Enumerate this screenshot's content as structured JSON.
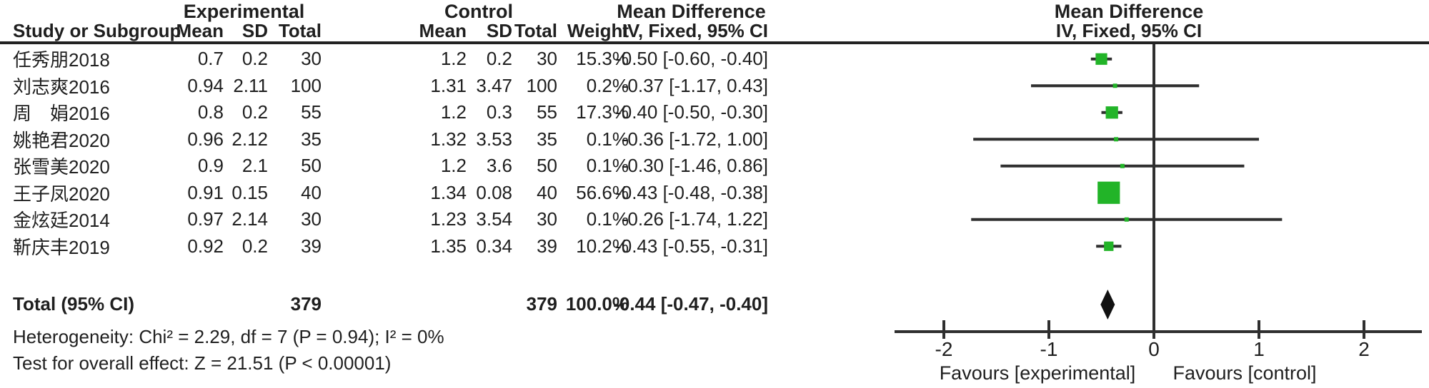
{
  "title_row": {
    "experimental": "Experimental",
    "control": "Control",
    "md_left": "Mean Difference",
    "md_right": "Mean Difference"
  },
  "columns": {
    "study": "Study or Subgroup",
    "mean": "Mean",
    "sd": "SD",
    "total": "Total",
    "mean2": "Mean",
    "sd2": "SD",
    "total2": "Total",
    "weight": "Weight",
    "ci": "IV, Fixed, 95% CI",
    "ci_right": "IV, Fixed, 95% CI"
  },
  "rows": [
    {
      "study": "任秀朋2018",
      "e_mean": "0.7",
      "e_sd": "0.2",
      "e_total": "30",
      "c_mean": "1.2",
      "c_sd": "0.2",
      "c_total": "30",
      "weight": "15.3%",
      "ci": "-0.50 [-0.60, -0.40]"
    },
    {
      "study": "刘志爽2016",
      "e_mean": "0.94",
      "e_sd": "2.11",
      "e_total": "100",
      "c_mean": "1.31",
      "c_sd": "3.47",
      "c_total": "100",
      "weight": "0.2%",
      "ci": "-0.37 [-1.17, 0.43]"
    },
    {
      "study": "周　娟2016",
      "e_mean": "0.8",
      "e_sd": "0.2",
      "e_total": "55",
      "c_mean": "1.2",
      "c_sd": "0.3",
      "c_total": "55",
      "weight": "17.3%",
      "ci": "-0.40 [-0.50, -0.30]"
    },
    {
      "study": "姚艳君2020",
      "e_mean": "0.96",
      "e_sd": "2.12",
      "e_total": "35",
      "c_mean": "1.32",
      "c_sd": "3.53",
      "c_total": "35",
      "weight": "0.1%",
      "ci": "-0.36 [-1.72, 1.00]"
    },
    {
      "study": "张雪美2020",
      "e_mean": "0.9",
      "e_sd": "2.1",
      "e_total": "50",
      "c_mean": "1.2",
      "c_sd": "3.6",
      "c_total": "50",
      "weight": "0.1%",
      "ci": "-0.30 [-1.46, 0.86]"
    },
    {
      "study": "王子凤2020",
      "e_mean": "0.91",
      "e_sd": "0.15",
      "e_total": "40",
      "c_mean": "1.34",
      "c_sd": "0.08",
      "c_total": "40",
      "weight": "56.6%",
      "ci": "-0.43 [-0.48, -0.38]"
    },
    {
      "study": "金炫廷2014",
      "e_mean": "0.97",
      "e_sd": "2.14",
      "e_total": "30",
      "c_mean": "1.23",
      "c_sd": "3.54",
      "c_total": "30",
      "weight": "0.1%",
      "ci": "-0.26 [-1.74, 1.22]"
    },
    {
      "study": "靳庆丰2019",
      "e_mean": "0.92",
      "e_sd": "0.2",
      "e_total": "39",
      "c_mean": "1.35",
      "c_sd": "0.34",
      "c_total": "39",
      "weight": "10.2%",
      "ci": "-0.43 [-0.55, -0.31]"
    }
  ],
  "total_row": {
    "label": "Total (95% CI)",
    "e_total": "379",
    "c_total": "379",
    "weight": "100.0%",
    "ci": "-0.44 [-0.47, -0.40]"
  },
  "footnotes": {
    "heterogeneity": "Heterogeneity: Chi² = 2.29, df = 7 (P = 0.94); I² = 0%",
    "overall_effect": "Test for overall effect: Z = 21.51 (P < 0.00001)"
  },
  "axis": {
    "ticks": [
      "-2",
      "-1",
      "0",
      "1",
      "2"
    ],
    "favours_left": "Favours [experimental]",
    "favours_right": "Favours [control]"
  },
  "colors": {
    "marker_green": "#22b428",
    "line": "#2f2f2f",
    "diamond": "#111111"
  },
  "chart_data": {
    "type": "scatter",
    "subtype": "forest-plot",
    "title": "Mean Difference IV, Fixed, 95% CI",
    "effect_measure": "Mean Difference",
    "model": "IV, Fixed, 95% CI",
    "xlim": [
      -2.5,
      2.5
    ],
    "ticks": [
      -2,
      -1,
      0,
      1,
      2
    ],
    "xlabel_left": "Favours [experimental]",
    "xlabel_right": "Favours [control]",
    "studies": [
      "任秀朋2018",
      "刘志爽2016",
      "周　娟2016",
      "姚艳君2020",
      "张雪美2020",
      "王子凤2020",
      "金炫廷2014",
      "靳庆丰2019"
    ],
    "effects": [
      -0.5,
      -0.37,
      -0.4,
      -0.36,
      -0.3,
      -0.43,
      -0.26,
      -0.43
    ],
    "ci_low": [
      -0.6,
      -1.17,
      -0.5,
      -1.72,
      -1.46,
      -0.48,
      -1.74,
      -0.55
    ],
    "ci_high": [
      -0.4,
      0.43,
      -0.3,
      1.0,
      0.86,
      -0.38,
      1.22,
      -0.31
    ],
    "weights_pct": [
      15.3,
      0.2,
      17.3,
      0.1,
      0.1,
      56.6,
      0.1,
      10.2
    ],
    "exp_totals": [
      30,
      100,
      55,
      35,
      50,
      40,
      30,
      39
    ],
    "ctl_totals": [
      30,
      100,
      55,
      35,
      50,
      40,
      30,
      39
    ],
    "pooled": {
      "effect": -0.44,
      "ci_low": -0.47,
      "ci_high": -0.4,
      "weight_pct": 100.0,
      "n_exp": 379,
      "n_ctl": 379
    },
    "heterogeneity": {
      "chi2": 2.29,
      "df": 7,
      "p": 0.94,
      "i2_pct": 0
    },
    "overall_effect": {
      "z": 21.51,
      "p": "< 0.00001"
    }
  }
}
